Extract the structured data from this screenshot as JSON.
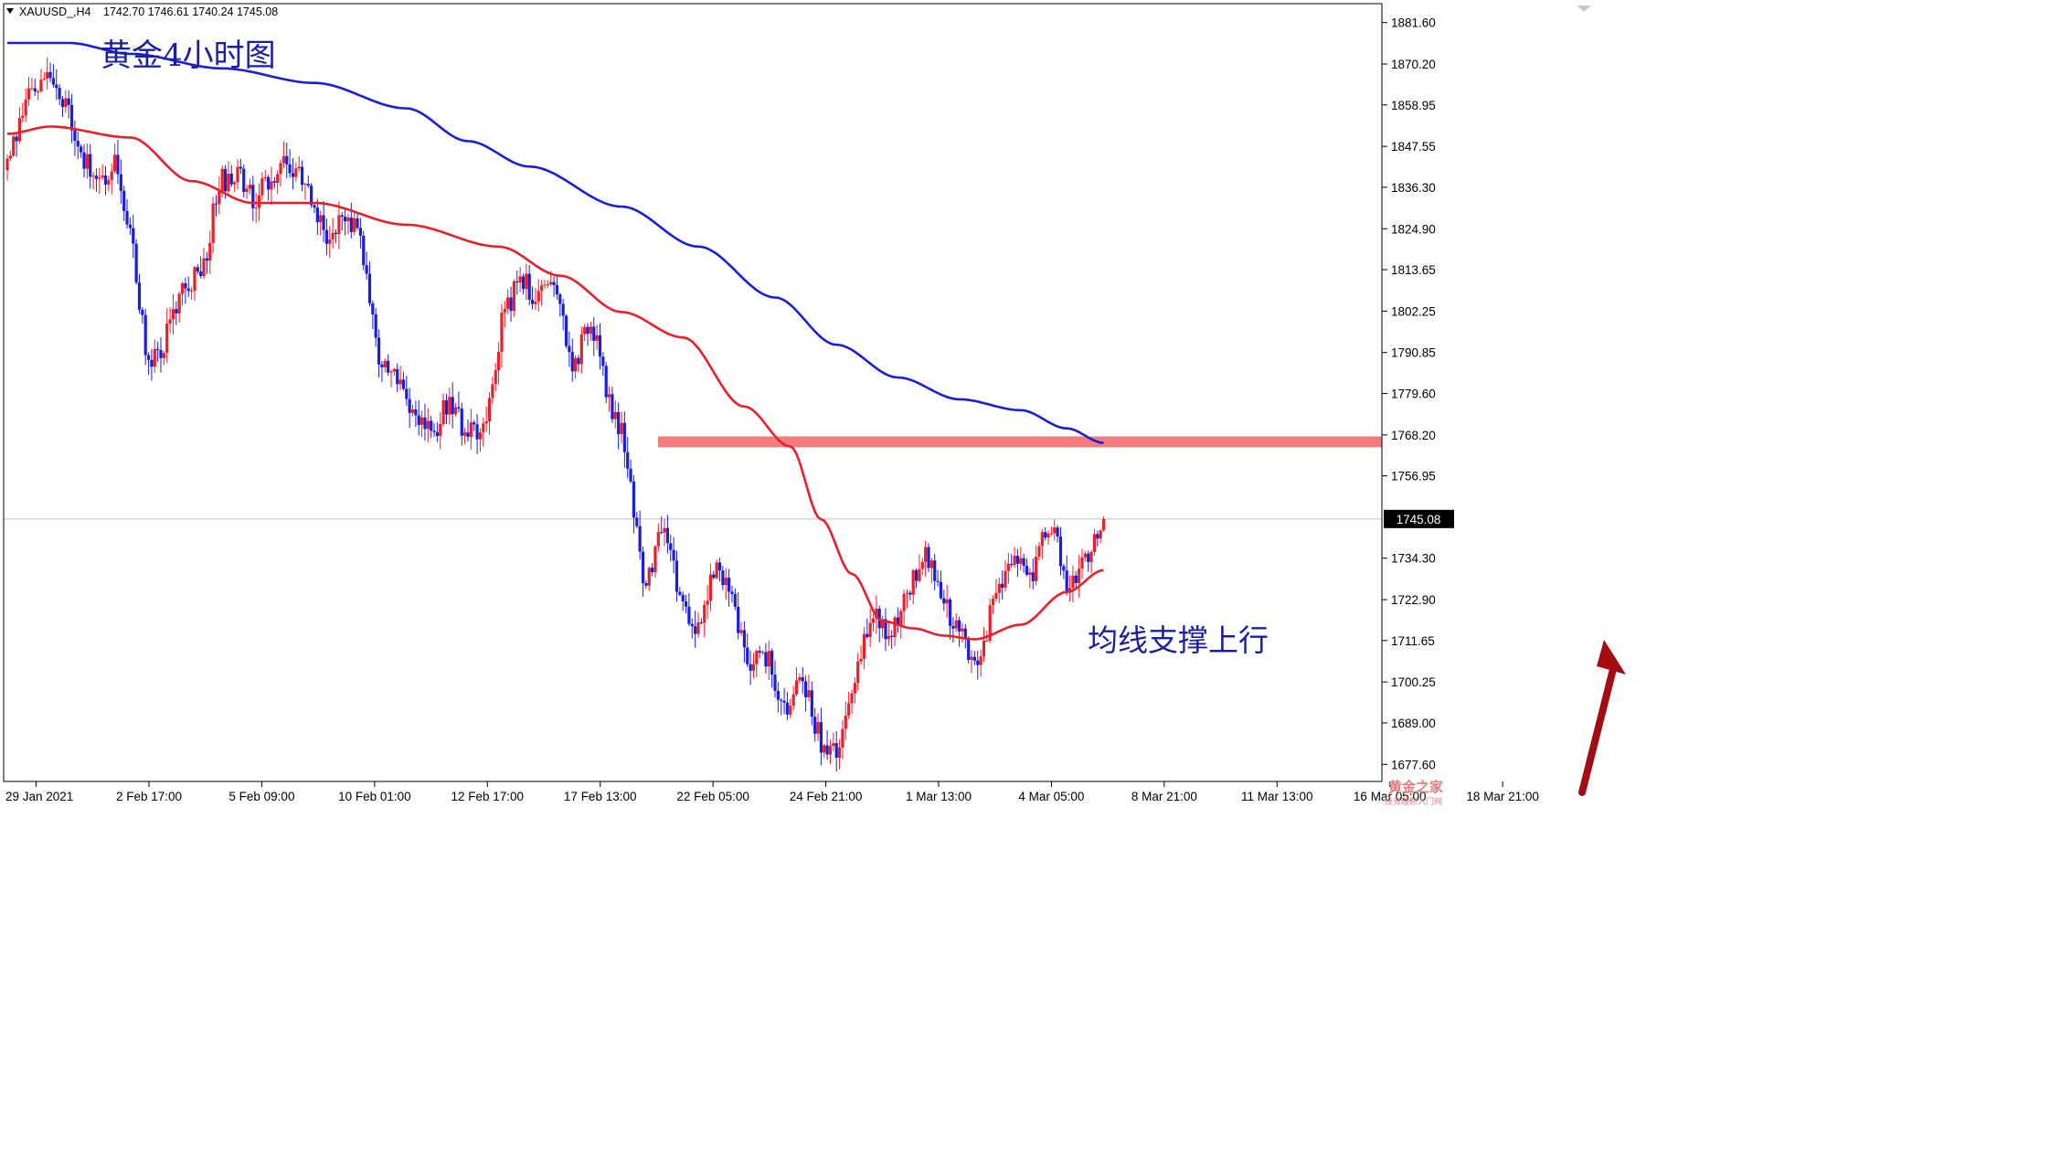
{
  "header": {
    "symbol": "XAUUSD_,H4",
    "ohlc": "1742.70 1746.61 1740.24 1745.08"
  },
  "annotations": {
    "title": "黄金4小时图",
    "note": "均线支撑上行"
  },
  "watermark": {
    "text": "黄金之家",
    "subtext": "投资理财入门网"
  },
  "colors": {
    "bull": "#e8202a",
    "bear": "#1a1fd6",
    "ma_short": "#e8202a",
    "ma_long": "#1a1fd6",
    "zone": "#f47c7c",
    "arrow": "#a30d12"
  },
  "chart_data": {
    "type": "candlestick",
    "timeframe": "H4",
    "ylim": [
      1672.9,
      1886.8
    ],
    "y_ticks": [
      "1881.60",
      "1870.20",
      "1858.95",
      "1847.55",
      "1836.30",
      "1824.90",
      "1813.65",
      "1802.25",
      "1790.85",
      "1779.60",
      "1768.20",
      "1756.95",
      "1745.08",
      "1734.30",
      "1722.90",
      "1711.65",
      "1700.25",
      "1689.00",
      "1677.60"
    ],
    "x_labels": [
      "29 Jan 2021",
      "2 Feb 17:00",
      "5 Feb 09:00",
      "10 Feb 01:00",
      "12 Feb 17:00",
      "17 Feb 13:00",
      "22 Feb 05:00",
      "24 Feb 21:00",
      "1 Mar 13:00",
      "4 Mar 05:00",
      "8 Mar 21:00",
      "11 Mar 13:00",
      "16 Mar 05:00",
      "18 Mar 21:00"
    ],
    "current_price": 1745.08,
    "resistance_zone": [
      1764.8,
      1767.8
    ],
    "waypoints_close": [
      1845,
      1858,
      1868,
      1862,
      1850,
      1835,
      1844,
      1822,
      1786,
      1795,
      1810,
      1812,
      1838,
      1840,
      1832,
      1840,
      1843,
      1835,
      1822,
      1830,
      1822,
      1790,
      1785,
      1775,
      1768,
      1778,
      1768,
      1772,
      1800,
      1812,
      1805,
      1810,
      1786,
      1800,
      1778,
      1765,
      1725,
      1742,
      1725,
      1712,
      1733,
      1722,
      1705,
      1708,
      1690,
      1702,
      1683,
      1680,
      1705,
      1718,
      1712,
      1727,
      1735,
      1722,
      1712,
      1705,
      1728,
      1733,
      1731,
      1745,
      1726,
      1735,
      1745
    ],
    "ma_short_anchors": [
      [
        0,
        1851
      ],
      [
        14,
        1853
      ],
      [
        40,
        1850
      ],
      [
        60,
        1838
      ],
      [
        80,
        1832
      ],
      [
        100,
        1832
      ],
      [
        130,
        1826
      ],
      [
        160,
        1820
      ],
      [
        180,
        1812
      ],
      [
        200,
        1802
      ],
      [
        220,
        1795
      ],
      [
        240,
        1776
      ],
      [
        255,
        1765
      ],
      [
        265,
        1745
      ],
      [
        275,
        1730
      ],
      [
        285,
        1717
      ],
      [
        295,
        1715
      ],
      [
        305,
        1713
      ],
      [
        315,
        1712
      ],
      [
        330,
        1716
      ],
      [
        345,
        1725
      ],
      [
        357,
        1731
      ]
    ],
    "ma_long_anchors": [
      [
        0,
        1876
      ],
      [
        20,
        1876
      ],
      [
        40,
        1873
      ],
      [
        70,
        1869
      ],
      [
        100,
        1865
      ],
      [
        130,
        1858
      ],
      [
        150,
        1849
      ],
      [
        170,
        1842
      ],
      [
        200,
        1831
      ],
      [
        225,
        1820
      ],
      [
        250,
        1806
      ],
      [
        270,
        1793
      ],
      [
        290,
        1784
      ],
      [
        310,
        1778
      ],
      [
        330,
        1775
      ],
      [
        345,
        1770
      ],
      [
        357,
        1766
      ]
    ],
    "series": [
      {
        "name": "",
        "kind": "candles",
        "count": 358
      },
      {
        "name": "",
        "kind": "moving-average",
        "color": "red"
      },
      {
        "name": "",
        "kind": "moving-average",
        "color": "blue"
      }
    ]
  }
}
